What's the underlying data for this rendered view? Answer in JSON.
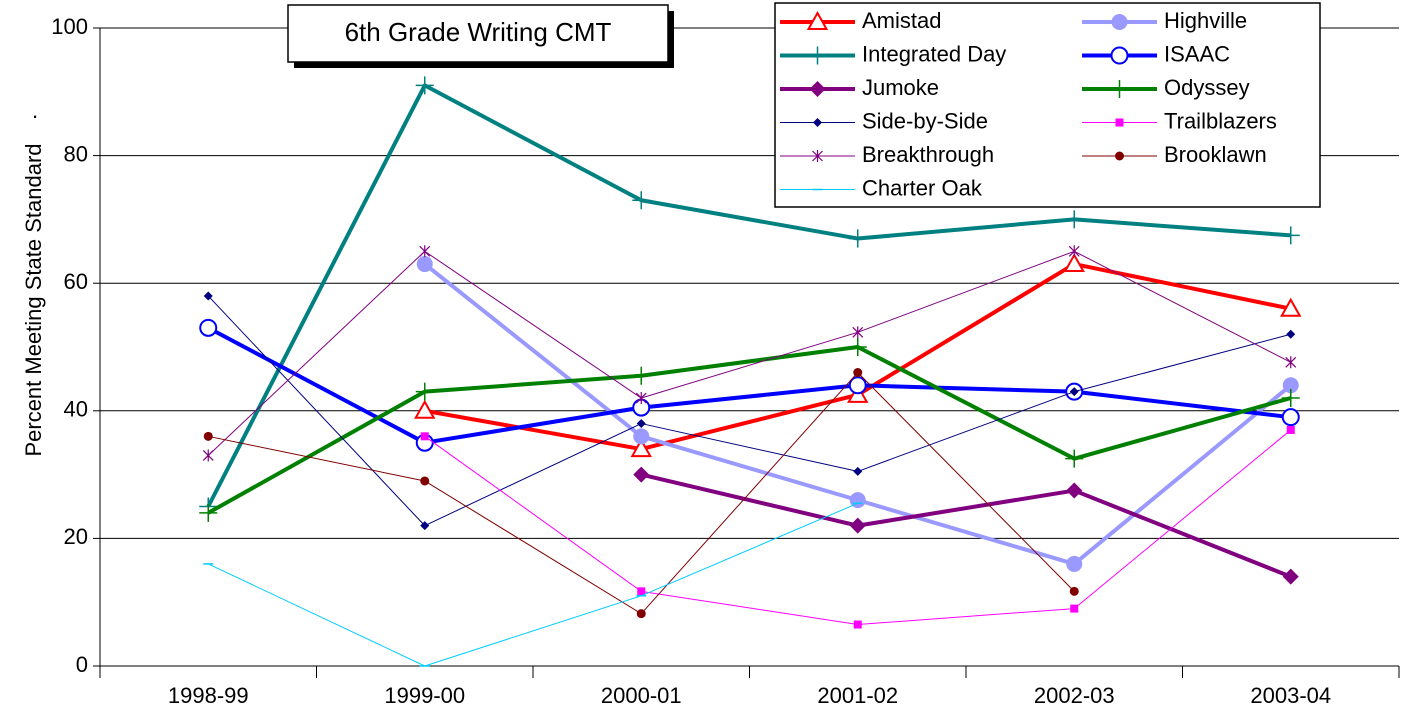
{
  "chart_data": {
    "type": "line",
    "title": "6th Grade Writing CMT",
    "y_label": "Percent Meeting State Standard",
    "annotation": ".",
    "categories": [
      "1998-99",
      "1999-00",
      "2000-01",
      "2001-02",
      "2002-03",
      "2003-04"
    ],
    "ylim": [
      0,
      100
    ],
    "yticks": [
      0,
      20,
      40,
      60,
      80,
      100
    ],
    "grid": true,
    "series": [
      {
        "name": "Amistad",
        "color": "#ff0000",
        "marker": "triangle",
        "width": 4,
        "values": [
          null,
          40,
          34,
          42.5,
          63,
          56
        ]
      },
      {
        "name": "Highville",
        "color": "#9999ff",
        "marker": "dot-large",
        "width": 4,
        "values": [
          null,
          63,
          36,
          26,
          16,
          44
        ]
      },
      {
        "name": "Integrated Day",
        "color": "#008080",
        "marker": "plus",
        "width": 4,
        "values": [
          25,
          91,
          73,
          67,
          70,
          67.5
        ]
      },
      {
        "name": "ISAAC",
        "color": "#0000ff",
        "marker": "ring",
        "width": 4,
        "values": [
          53,
          35,
          40.5,
          44,
          43,
          39
        ]
      },
      {
        "name": "Jumoke",
        "color": "#800080",
        "marker": "diamond",
        "width": 4,
        "values": [
          null,
          null,
          30,
          22,
          27.5,
          14
        ]
      },
      {
        "name": "Odyssey",
        "color": "#008000",
        "marker": "plus",
        "width": 4,
        "values": [
          24,
          43,
          45.5,
          50,
          32.5,
          42
        ]
      },
      {
        "name": "Side-by-Side",
        "color": "#000080",
        "marker": "diamond-small",
        "width": 1,
        "values": [
          58,
          22,
          38,
          30.5,
          43,
          52
        ]
      },
      {
        "name": "Trailblazers",
        "color": "#ff00ff",
        "marker": "square",
        "width": 1,
        "values": [
          null,
          36,
          11.7,
          6.5,
          9,
          37
        ]
      },
      {
        "name": "Breakthrough",
        "color": "#800080",
        "marker": "star",
        "width": 1,
        "values": [
          33,
          65,
          42,
          52.3,
          65,
          47.6
        ]
      },
      {
        "name": "Brooklawn",
        "color": "#800000",
        "marker": "dot",
        "width": 1,
        "values": [
          36,
          29,
          8.2,
          46,
          11.7,
          null
        ]
      },
      {
        "name": "Charter Oak",
        "color": "#00ccff",
        "marker": "dash",
        "width": 1,
        "values": [
          16,
          0,
          11,
          25.5,
          null,
          null
        ]
      }
    ]
  }
}
